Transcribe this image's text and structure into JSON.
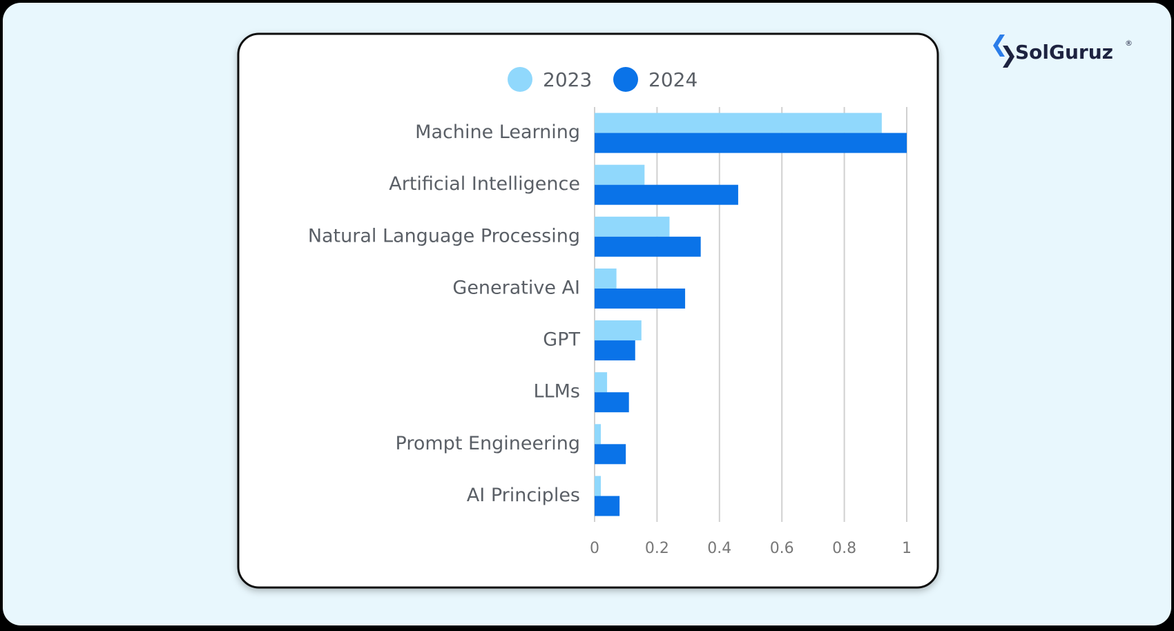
{
  "logo": {
    "text": "SolGuruz",
    "mark": "®"
  },
  "chart_data": {
    "type": "bar",
    "orientation": "horizontal",
    "categories": [
      "Machine Learning",
      "Artificial Intelligence",
      "Natural Language Processing",
      "Generative AI",
      "GPT",
      "LLMs",
      "Prompt Engineering",
      "AI Principles"
    ],
    "series": [
      {
        "name": "2023",
        "color": "#90d8fc",
        "values": [
          0.92,
          0.16,
          0.24,
          0.07,
          0.15,
          0.04,
          0.02,
          0.02
        ]
      },
      {
        "name": "2024",
        "color": "#0a73e8",
        "values": [
          1.0,
          0.46,
          0.34,
          0.29,
          0.13,
          0.11,
          0.1,
          0.08
        ]
      }
    ],
    "xlim": [
      0,
      1
    ],
    "xticks": [
      0,
      0.2,
      0.4,
      0.6,
      0.8,
      1
    ],
    "grid": true,
    "legend": "top"
  }
}
